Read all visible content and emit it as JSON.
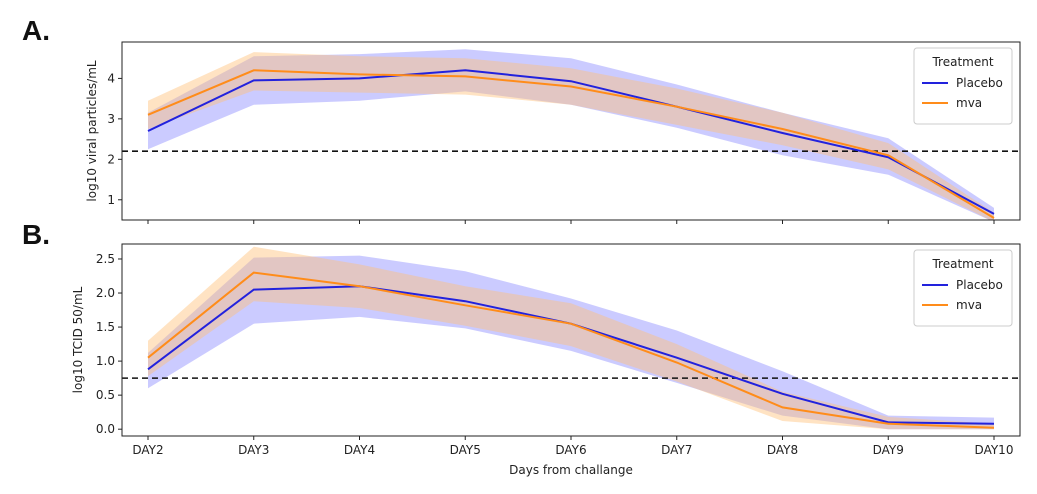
{
  "figure": {
    "panel_a_label": "A.",
    "panel_b_label": "B."
  },
  "chart_data": [
    {
      "type": "line",
      "panel": "A.",
      "ylabel": "log10 viral particles/mL",
      "xlabel": "",
      "categories": [
        "DAY2",
        "DAY3",
        "DAY4",
        "DAY5",
        "DAY6",
        "DAY7",
        "DAY8",
        "DAY9",
        "DAY10"
      ],
      "ylim": [
        0.5,
        4.9
      ],
      "yticks": [
        1,
        2,
        3,
        4
      ],
      "threshold": 2.2,
      "legend": {
        "title": "Treatment",
        "position": "top-right"
      },
      "series": [
        {
          "name": "Placebo",
          "color": "#2222dd",
          "band_color": "#8c8cff",
          "values": [
            2.7,
            3.95,
            4.0,
            4.2,
            3.93,
            3.3,
            2.65,
            2.05,
            0.65
          ],
          "lower": [
            2.25,
            3.35,
            3.45,
            3.68,
            3.35,
            2.78,
            2.1,
            1.62,
            0.45
          ],
          "upper": [
            3.15,
            4.55,
            4.6,
            4.72,
            4.5,
            3.85,
            3.15,
            2.52,
            0.8
          ]
        },
        {
          "name": "mva",
          "color": "#ff8c1a",
          "band_color": "#ffc27a",
          "values": [
            3.1,
            4.2,
            4.1,
            4.05,
            3.8,
            3.3,
            2.75,
            2.1,
            0.55
          ],
          "lower": [
            2.75,
            3.7,
            3.65,
            3.6,
            3.35,
            2.85,
            2.35,
            1.75,
            0.45
          ],
          "upper": [
            3.45,
            4.65,
            4.55,
            4.5,
            4.25,
            3.75,
            3.15,
            2.4,
            0.68
          ]
        }
      ]
    },
    {
      "type": "line",
      "panel": "B.",
      "ylabel": "log10 TCID 50/mL",
      "xlabel": "Days from challange",
      "categories": [
        "DAY2",
        "DAY3",
        "DAY4",
        "DAY5",
        "DAY6",
        "DAY7",
        "DAY8",
        "DAY9",
        "DAY10"
      ],
      "ylim": [
        -0.1,
        2.72
      ],
      "yticks": [
        0.0,
        0.5,
        1.0,
        1.5,
        2.0,
        2.5
      ],
      "threshold": 0.75,
      "legend": {
        "title": "Treatment",
        "position": "top-right"
      },
      "series": [
        {
          "name": "Placebo",
          "color": "#2222dd",
          "band_color": "#8c8cff",
          "values": [
            0.88,
            2.05,
            2.1,
            1.88,
            1.55,
            1.05,
            0.52,
            0.1,
            0.08
          ],
          "lower": [
            0.6,
            1.55,
            1.65,
            1.48,
            1.15,
            0.68,
            0.2,
            0.0,
            0.0
          ],
          "upper": [
            1.12,
            2.52,
            2.55,
            2.32,
            1.92,
            1.45,
            0.85,
            0.2,
            0.17
          ]
        },
        {
          "name": "mva",
          "color": "#ff8c1a",
          "band_color": "#ffc27a",
          "values": [
            1.05,
            2.3,
            2.1,
            1.82,
            1.55,
            0.98,
            0.32,
            0.08,
            0.02
          ],
          "lower": [
            0.78,
            1.88,
            1.78,
            1.52,
            1.22,
            0.7,
            0.12,
            0.0,
            0.0
          ],
          "upper": [
            1.3,
            2.68,
            2.42,
            2.1,
            1.85,
            1.25,
            0.55,
            0.18,
            0.08
          ]
        }
      ]
    }
  ]
}
